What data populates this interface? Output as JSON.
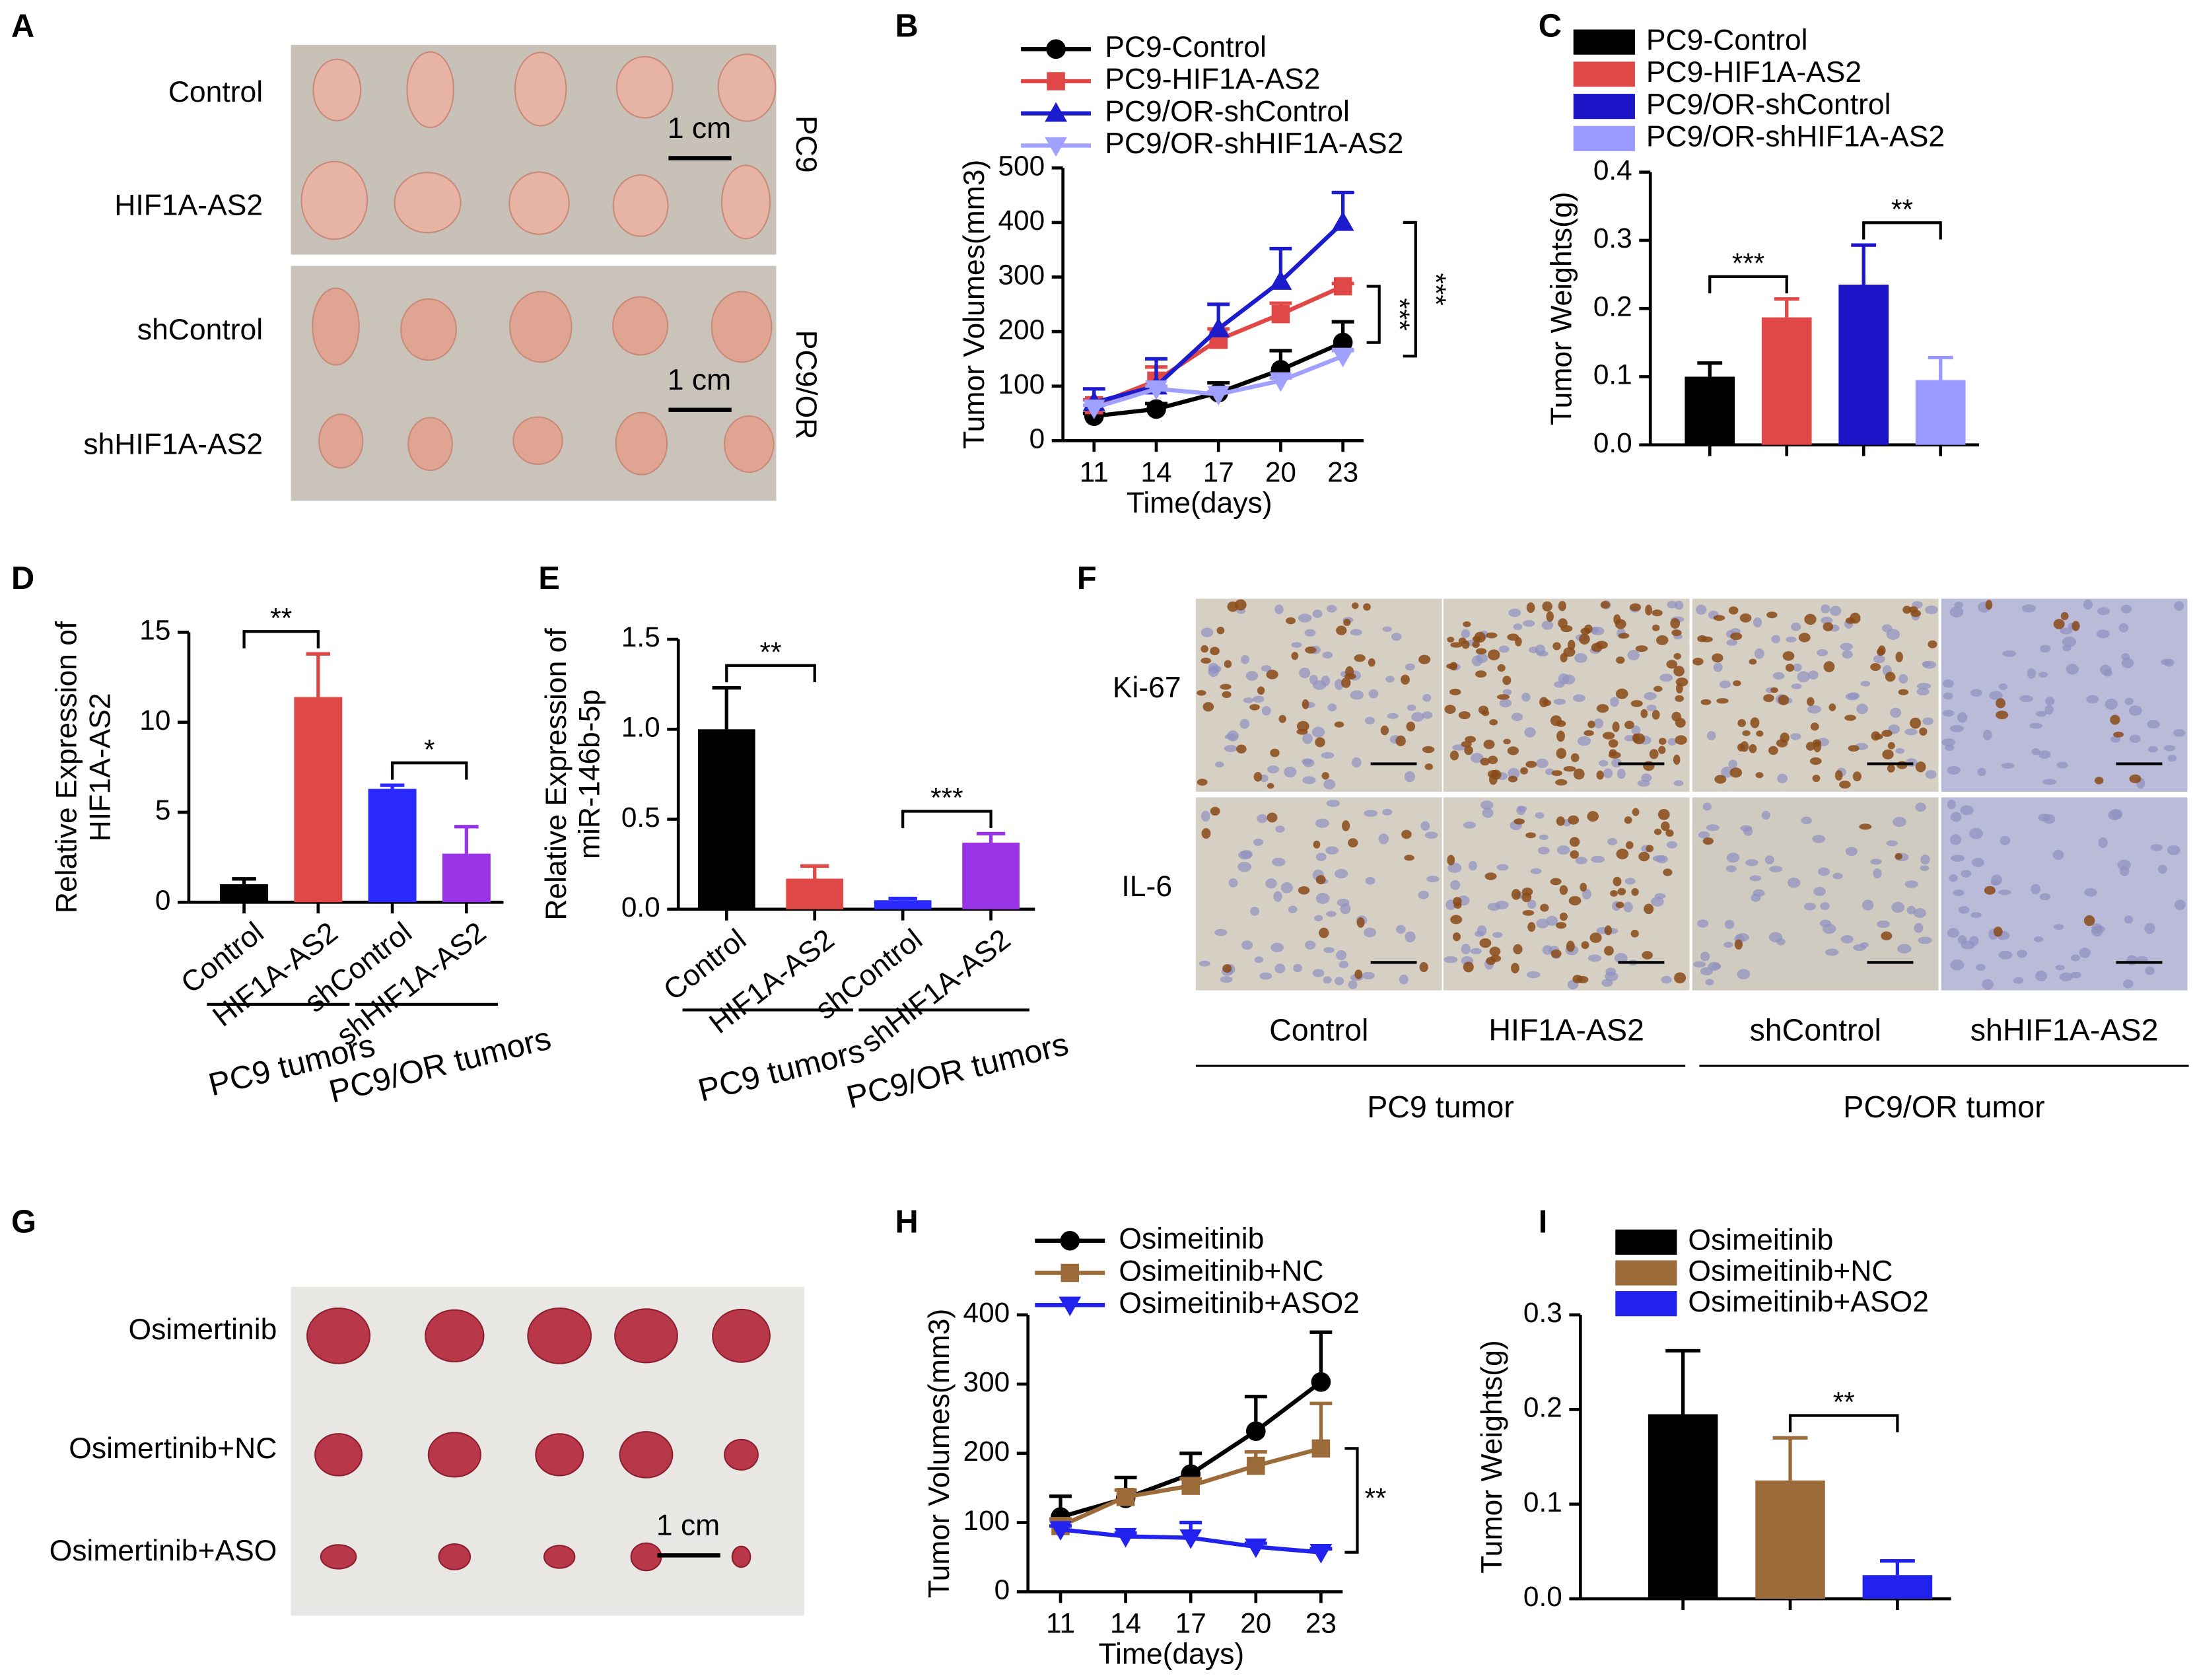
{
  "chart_data": [
    {
      "type": "line",
      "panel": "B",
      "x": [
        11,
        14,
        17,
        20,
        23
      ],
      "xlim": [
        9.5,
        24
      ],
      "xticks": [
        11,
        14,
        17,
        20,
        23
      ],
      "ylim": [
        0,
        500
      ],
      "yticks": [
        0,
        100,
        200,
        300,
        400,
        500
      ],
      "xlabel": "Time(days)",
      "ylabel": [
        "Tumor Volumes(mm3)"
      ],
      "series": [
        {
          "name": "PC9-Control",
          "color": "#000000",
          "marker": "circle",
          "values": [
            45,
            58,
            88,
            130,
            180
          ],
          "errors": [
            5,
            10,
            18,
            35,
            38
          ]
        },
        {
          "name": "PC9-HIF1A-AS2",
          "color": "#e04848",
          "marker": "square",
          "values": [
            65,
            110,
            185,
            232,
            283
          ],
          "errors": [
            10,
            25,
            20,
            20,
            5
          ]
        },
        {
          "name": "PC9/OR-shControl",
          "color": "#1c1ccc",
          "marker": "triangle",
          "values": [
            70,
            100,
            205,
            292,
            400
          ],
          "errors": [
            25,
            50,
            45,
            60,
            55
          ]
        },
        {
          "name": "PC9/OR-shHIF1A-AS2",
          "color": "#a0a0ff",
          "marker": "triangle-down",
          "values": [
            60,
            95,
            85,
            110,
            155
          ],
          "errors": [
            5,
            5,
            5,
            5,
            10
          ]
        }
      ],
      "annotations": [
        {
          "text": "***",
          "between": [
            1,
            0
          ]
        },
        {
          "text": "***",
          "between": [
            2,
            3
          ]
        }
      ],
      "annotation_rotated": true
    },
    {
      "type": "bar",
      "panel": "C",
      "categories": [
        null
      ],
      "ylim": [
        0,
        0.4
      ],
      "yticks": [
        {
          "value": 0,
          "label": "0.0"
        },
        0.1,
        0.2,
        0.3,
        0.4
      ],
      "ylabel": [
        "Tumor Weights(g)"
      ],
      "series": [
        {
          "name": "PC9-Control",
          "color": "#000000",
          "values": [
            0.1
          ],
          "errors": [
            0.02
          ]
        },
        {
          "name": "PC9-HIF1A-AS2",
          "color": "#e04848",
          "values": [
            0.187
          ],
          "errors": [
            0.027
          ]
        },
        {
          "name": "PC9/OR-shControl",
          "color": "#1e14c8",
          "values": [
            0.235
          ],
          "errors": [
            0.058
          ]
        },
        {
          "name": "PC9/OR-shHIF1A-AS2",
          "color": "#9999ff",
          "values": [
            0.095
          ],
          "errors": [
            0.033
          ]
        }
      ],
      "annotations": [
        {
          "text": "***",
          "between": [
            0,
            1
          ]
        },
        {
          "text": "**",
          "between": [
            2,
            3
          ]
        }
      ]
    },
    {
      "type": "bar",
      "panel": "D",
      "categories": [
        "Control",
        "HIF1A-AS2",
        "shControl",
        "shHIF1A-AS2"
      ],
      "values": [
        1.0,
        11.4,
        6.3,
        2.7
      ],
      "errors": [
        0.3,
        2.4,
        0.2,
        1.5
      ],
      "colors": [
        "#000000",
        "#e04848",
        "#2a2aff",
        "#9933e6"
      ],
      "ylim": [
        0,
        15
      ],
      "yticks": [
        0,
        5,
        10,
        15
      ],
      "ylabel": [
        "Relative Expression of",
        "HIF1A-AS2"
      ],
      "groups": [
        {
          "label": "PC9 tumors",
          "categories": [
            0,
            1
          ]
        },
        {
          "label": "PC9/OR tumors",
          "categories": [
            2,
            3
          ]
        }
      ],
      "annotations": [
        {
          "text": "**",
          "between": [
            0,
            1
          ]
        },
        {
          "text": "*",
          "between": [
            2,
            3
          ]
        }
      ]
    },
    {
      "type": "bar",
      "panel": "E",
      "categories": [
        "Control",
        "HIF1A-AS2",
        "shControl",
        "shHIF1A-AS2"
      ],
      "values": [
        1.0,
        0.17,
        0.05,
        0.37
      ],
      "errors": [
        0.23,
        0.07,
        0.01,
        0.05
      ],
      "colors": [
        "#000000",
        "#e04848",
        "#2a2aff",
        "#9933e6"
      ],
      "ylim": [
        0,
        1.5
      ],
      "yticks": [
        {
          "value": 0,
          "label": "0.0"
        },
        0.5,
        {
          "value": 1,
          "label": "1.0"
        },
        1.5
      ],
      "ylabel": [
        "Relative Expression of",
        "miR-146b-5p"
      ],
      "groups": [
        {
          "label": "PC9 tumors",
          "categories": [
            0,
            1
          ]
        },
        {
          "label": "PC9/OR tumors",
          "categories": [
            2,
            3
          ]
        }
      ],
      "annotations": [
        {
          "text": "**",
          "between": [
            0,
            1
          ]
        },
        {
          "text": "***",
          "between": [
            2,
            3
          ]
        }
      ]
    },
    {
      "type": "line",
      "panel": "H",
      "x": [
        11,
        14,
        17,
        20,
        23
      ],
      "xlim": [
        9.5,
        24
      ],
      "xticks": [
        11,
        14,
        17,
        20,
        23
      ],
      "ylim": [
        0,
        400
      ],
      "yticks": [
        0,
        100,
        200,
        300,
        400
      ],
      "xlabel": "Time(days)",
      "ylabel": [
        "Tumor Volumes(mm3)"
      ],
      "series": [
        {
          "name": "Osimeitinib",
          "color": "#000000",
          "marker": "circle",
          "values": [
            108,
            135,
            170,
            232,
            303
          ],
          "errors": [
            30,
            30,
            30,
            50,
            72
          ]
        },
        {
          "name": "Osimeitinib+NC",
          "color": "#9c6b3a",
          "marker": "square",
          "values": [
            95,
            137,
            153,
            182,
            207
          ],
          "errors": [
            10,
            10,
            10,
            20,
            65
          ]
        },
        {
          "name": "Osimeitinib+ASO2",
          "color": "#2222ee",
          "marker": "triangle-down",
          "values": [
            90,
            80,
            78,
            65,
            57
          ],
          "errors": [
            5,
            5,
            22,
            5,
            5
          ]
        }
      ],
      "annotations": [
        {
          "text": "**",
          "between": [
            1,
            2
          ]
        }
      ],
      "annotation_rotated": false
    },
    {
      "type": "bar",
      "panel": "I",
      "categories": [
        null
      ],
      "ylim": [
        0,
        0.3
      ],
      "yticks": [
        {
          "value": 0,
          "label": "0.0"
        },
        0.1,
        0.2,
        0.3
      ],
      "ylabel": [
        "Tumor Weights(g)"
      ],
      "series": [
        {
          "name": "Osimeitinib",
          "color": "#000000",
          "values": [
            0.195
          ],
          "errors": [
            0.067
          ]
        },
        {
          "name": "Osimeitinib+NC",
          "color": "#9c6b3a",
          "values": [
            0.125
          ],
          "errors": [
            0.045
          ]
        },
        {
          "name": "Osimeitinib+ASO2",
          "color": "#2222ee",
          "values": [
            0.025
          ],
          "errors": [
            0.015
          ]
        }
      ],
      "annotations": [
        {
          "text": "**",
          "between": [
            1,
            2
          ]
        }
      ]
    }
  ],
  "photos": {
    "A": {
      "panel": "A",
      "rows": [
        "Control",
        "HIF1A-AS2",
        "shControl",
        "shHIF1A-AS2"
      ],
      "scale_bars": [
        "1 cm",
        "1 cm"
      ],
      "groups": [
        "PC9",
        "PC9/OR"
      ]
    },
    "F": {
      "panel": "F",
      "rows": [
        "Ki-67",
        "IL-6"
      ],
      "columns": [
        "Control",
        "HIF1A-AS2",
        "shControl",
        "shHIF1A-AS2"
      ],
      "groups": [
        "PC9 tumor",
        "PC9/OR tumor"
      ]
    },
    "G": {
      "panel": "G",
      "rows": [
        "Osimertinib",
        "Osimertinib+NC",
        "Osimertinib+ASO"
      ],
      "scale_bar": "1 cm"
    }
  }
}
